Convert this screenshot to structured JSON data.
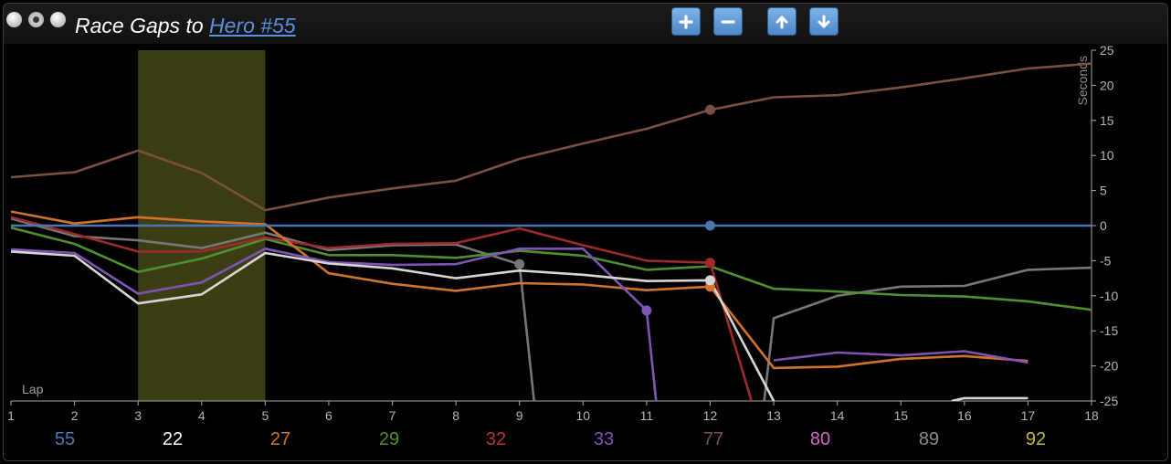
{
  "window": {
    "title_prefix": "Race Gaps to",
    "title_link": "Hero #55",
    "buttons": {
      "zoom_in": "plus-icon",
      "zoom_out": "minus-icon",
      "up": "arrow-up-icon",
      "down": "arrow-down-icon"
    },
    "accent": "#5b9bd9"
  },
  "chart_data": {
    "type": "line",
    "xlabel": "Lap",
    "ylabel": "Seconds",
    "xlim": [
      1,
      18
    ],
    "ylim": [
      -25,
      25
    ],
    "x_ticks": [
      1,
      2,
      3,
      4,
      5,
      6,
      7,
      8,
      9,
      10,
      11,
      12,
      13,
      14,
      15,
      16,
      17,
      18
    ],
    "y_ticks": [
      25,
      20,
      15,
      10,
      5,
      0,
      -5,
      -10,
      -15,
      -20,
      -25
    ],
    "highlight_range": [
      3,
      5
    ],
    "highlight_color": "#3d3d14",
    "grid": false,
    "current_lap": 12,
    "series": [
      {
        "name": "77",
        "color": "#7a5044",
        "points": [
          [
            1,
            6.9
          ],
          [
            2,
            7.6
          ],
          [
            3,
            10.7
          ],
          [
            4,
            7.5
          ],
          [
            5,
            2.2
          ],
          [
            6,
            4.0
          ],
          [
            7,
            5.3
          ],
          [
            8,
            6.4
          ],
          [
            9,
            9.5
          ],
          [
            10,
            11.7
          ],
          [
            11,
            13.8
          ],
          [
            12,
            16.5
          ],
          [
            13,
            18.3
          ],
          [
            14,
            18.6
          ],
          [
            15,
            19.7
          ],
          [
            16,
            21.0
          ],
          [
            17,
            22.4
          ],
          [
            18,
            23.1
          ]
        ],
        "marker": [
          12,
          16.5
        ]
      },
      {
        "name": "89",
        "color": "#777777",
        "points": [
          [
            1,
            1.0
          ],
          [
            2,
            -1.5
          ],
          [
            3,
            -2.1
          ],
          [
            4,
            -3.2
          ],
          [
            5,
            -1.0
          ],
          [
            6,
            -3.5
          ],
          [
            7,
            -2.8
          ],
          [
            8,
            -2.7
          ],
          [
            9,
            -5.5
          ],
          [
            9.23,
            -25
          ]
        ],
        "marker": [
          9,
          -5.5
        ]
      },
      {
        "name": "89",
        "color": "#777777",
        "points": [
          [
            12.85,
            -25
          ],
          [
            13,
            -13.2
          ],
          [
            14,
            -10.0
          ],
          [
            15,
            -8.7
          ],
          [
            16,
            -8.6
          ],
          [
            17,
            -6.3
          ],
          [
            18,
            -6.0
          ]
        ]
      },
      {
        "name": "29",
        "color": "#4f8f2e",
        "points": [
          [
            1,
            -0.3
          ],
          [
            2,
            -2.6
          ],
          [
            3,
            -6.6
          ],
          [
            4,
            -4.7
          ],
          [
            5,
            -1.9
          ],
          [
            6,
            -4.2
          ],
          [
            7,
            -4.2
          ],
          [
            8,
            -4.6
          ],
          [
            9,
            -3.6
          ],
          [
            10,
            -4.3
          ],
          [
            11,
            -6.3
          ],
          [
            12,
            -5.8
          ],
          [
            13,
            -9.0
          ],
          [
            14,
            -9.4
          ],
          [
            15,
            -9.9
          ],
          [
            16,
            -10.1
          ],
          [
            17,
            -10.8
          ],
          [
            18,
            -12.0
          ]
        ]
      },
      {
        "name": "32",
        "color": "#9e2a2e",
        "points": [
          [
            1,
            1.2
          ],
          [
            2,
            -1.2
          ],
          [
            3,
            -3.7
          ],
          [
            4,
            -3.7
          ],
          [
            5,
            -1.7
          ],
          [
            6,
            -3.2
          ],
          [
            7,
            -2.6
          ],
          [
            8,
            -2.5
          ],
          [
            9,
            -0.4
          ],
          [
            10,
            -2.8
          ],
          [
            11,
            -5.0
          ],
          [
            12,
            -5.3
          ],
          [
            12.65,
            -25
          ]
        ],
        "marker": [
          12,
          -5.3
        ]
      },
      {
        "name": "27",
        "color": "#d0732b",
        "points": [
          [
            1,
            2.0
          ],
          [
            2,
            0.3
          ],
          [
            3,
            1.2
          ],
          [
            4,
            0.6
          ],
          [
            5,
            0.2
          ],
          [
            6,
            -6.8
          ],
          [
            7,
            -8.3
          ],
          [
            8,
            -9.3
          ],
          [
            9,
            -8.2
          ],
          [
            10,
            -8.4
          ],
          [
            11,
            -9.2
          ],
          [
            12,
            -8.7
          ],
          [
            13,
            -20.3
          ],
          [
            14,
            -20.1
          ],
          [
            15,
            -19.0
          ],
          [
            16,
            -18.6
          ],
          [
            17,
            -19.3
          ]
        ],
        "marker": [
          12,
          -8.7
        ]
      },
      {
        "name": "33",
        "color": "#7c55b3",
        "points": [
          [
            1,
            -3.4
          ],
          [
            2,
            -3.9
          ],
          [
            3,
            -9.7
          ],
          [
            4,
            -8.1
          ],
          [
            5,
            -3.3
          ],
          [
            6,
            -5.2
          ],
          [
            7,
            -5.6
          ],
          [
            8,
            -5.5
          ],
          [
            9,
            -3.3
          ],
          [
            10,
            -3.3
          ],
          [
            11,
            -12.1
          ],
          [
            11.15,
            -25
          ]
        ],
        "marker": [
          11,
          -12.1
        ]
      },
      {
        "name": "33",
        "color": "#7c55b3",
        "points": [
          [
            13,
            -19.2
          ],
          [
            14,
            -18.1
          ],
          [
            15,
            -18.5
          ],
          [
            16,
            -17.9
          ],
          [
            17,
            -19.5
          ]
        ]
      },
      {
        "name": "22",
        "color": "#d6d6d6",
        "points": [
          [
            1,
            -3.7
          ],
          [
            2,
            -4.3
          ],
          [
            3,
            -11.1
          ],
          [
            4,
            -9.8
          ],
          [
            5,
            -3.9
          ],
          [
            6,
            -5.4
          ],
          [
            7,
            -6.1
          ],
          [
            8,
            -7.5
          ],
          [
            9,
            -6.4
          ],
          [
            10,
            -7.0
          ],
          [
            11,
            -7.9
          ],
          [
            12,
            -7.8
          ],
          [
            13,
            -25
          ]
        ],
        "marker": [
          12,
          -7.8
        ]
      },
      {
        "name": "22",
        "color": "#d6d6d6",
        "points": [
          [
            15.8,
            -25
          ],
          [
            16,
            -24.6
          ],
          [
            17,
            -24.6
          ]
        ]
      },
      {
        "name": "55",
        "color": "#4a77b4",
        "points": [
          [
            1,
            0
          ],
          [
            2,
            0
          ],
          [
            3,
            0
          ],
          [
            4,
            0
          ],
          [
            5,
            0
          ],
          [
            6,
            0
          ],
          [
            7,
            0
          ],
          [
            8,
            0
          ],
          [
            9,
            0
          ],
          [
            10,
            0
          ],
          [
            11,
            0
          ],
          [
            12,
            0
          ],
          [
            13,
            0
          ],
          [
            14,
            0
          ],
          [
            15,
            0
          ],
          [
            16,
            0
          ],
          [
            17,
            0
          ],
          [
            18,
            0
          ]
        ],
        "marker": [
          12,
          0
        ]
      }
    ],
    "legend": [
      {
        "label": "55",
        "color": "#4a77b4"
      },
      {
        "label": "22",
        "color": "#ffffff"
      },
      {
        "label": "27",
        "color": "#d0732b"
      },
      {
        "label": "29",
        "color": "#4f8f2e"
      },
      {
        "label": "32",
        "color": "#b7303a"
      },
      {
        "label": "33",
        "color": "#7c55b3"
      },
      {
        "label": "77",
        "color": "#7a5044"
      },
      {
        "label": "80",
        "color": "#d268c8"
      },
      {
        "label": "89",
        "color": "#8a8a8a"
      },
      {
        "label": "92",
        "color": "#c2b93a"
      }
    ]
  }
}
